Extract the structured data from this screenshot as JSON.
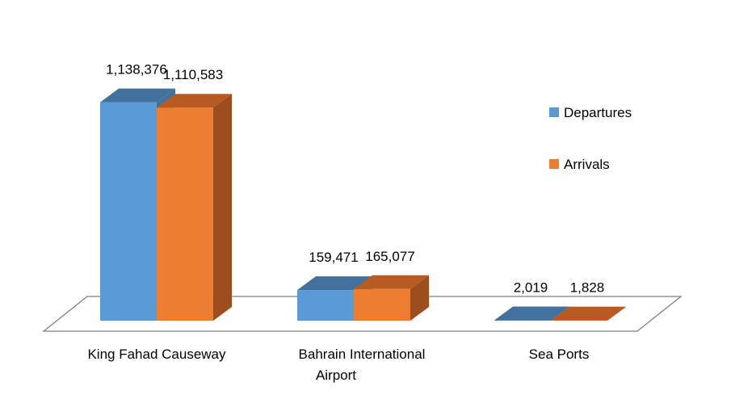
{
  "chart_data": {
    "type": "bar",
    "style": "3d-clustered-column",
    "categories": [
      "King Fahad Causeway",
      "Bahrain International Airport",
      "Sea Ports"
    ],
    "series": [
      {
        "name": "Departures",
        "values": [
          1138376,
          159471,
          2019
        ],
        "labels": [
          "1,138,376",
          "159,471",
          "2,019"
        ]
      },
      {
        "name": "Arrivals",
        "values": [
          1110583,
          165077,
          1828
        ],
        "labels": [
          "1,110,583",
          "165,077",
          "1,828"
        ]
      }
    ],
    "title": "",
    "xlabel": "",
    "ylabel": "",
    "ylim": [
      0,
      1200000
    ],
    "grid": false,
    "legend_position": "right",
    "colors": {
      "series": [
        "#5b9bd5",
        "#ed7d31"
      ],
      "series_top": [
        "#41719c",
        "#b85b22"
      ],
      "series_side": [
        "#41719c",
        "#9e4d1f"
      ],
      "floor_stroke": "#7f7f7f"
    }
  }
}
